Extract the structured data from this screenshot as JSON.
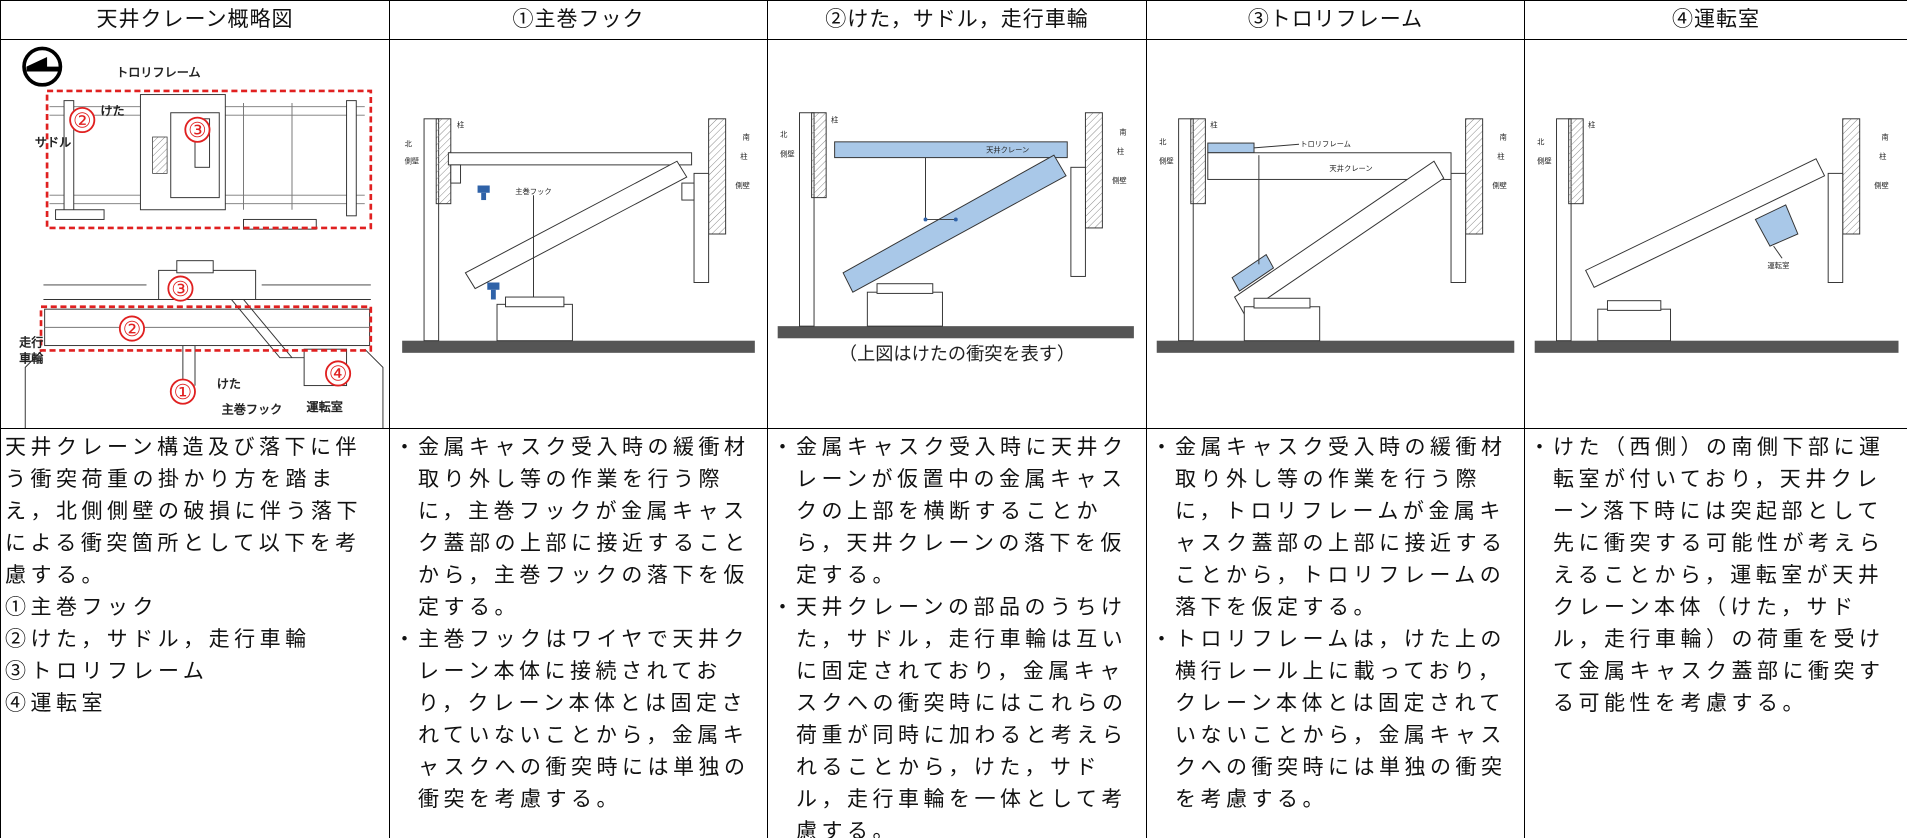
{
  "table": {
    "headers": [
      "天井クレーン概略図",
      "①主巻フック",
      "②けた，サドル，走行車輪",
      "③トロリフレーム",
      "④運転室"
    ],
    "overview_labels": [
      "トロリフレーム",
      "けた",
      "サドル",
      "走行",
      "車輪",
      "けた",
      "主巻フック",
      "運転室"
    ],
    "overview_markers": [
      "②",
      "③",
      "③",
      "②",
      "①",
      "④"
    ],
    "diagrams": [
      {
        "labels": [
          "北",
          "側壁",
          "柱",
          "南",
          "柱",
          "側壁",
          "主巻フック"
        ]
      },
      {
        "labels": [
          "北",
          "側壁",
          "柱",
          "南",
          "柱",
          "側壁",
          "天井クレーン"
        ],
        "caption": "（上図はけたの衝突を表す）"
      },
      {
        "labels": [
          "北",
          "側壁",
          "柱",
          "南",
          "柱",
          "側壁",
          "トロリフレーム",
          "天井クレーン"
        ]
      },
      {
        "labels": [
          "北",
          "側壁",
          "柱",
          "南",
          "柱",
          "側壁",
          "運転室"
        ]
      }
    ],
    "bullet_marker": "・",
    "descriptions": [
      {
        "text": "天井クレーン構造及び落下に伴う衝突荷重の掛かり方を踏まえ，北側側壁の破損に伴う落下による衝突箇所として以下を考慮する。",
        "items": [
          "①主巻フック",
          "②けた，サドル，走行車輪",
          "③トロリフレーム",
          "④運転室"
        ]
      },
      {
        "bullets": [
          "金属キャスク受入時の緩衝材取り外し等の作業を行う際に，主巻フックが金属キャスク蓋部の上部に接近することから，主巻フックの落下を仮定する。",
          "主巻フックはワイヤで天井クレーン本体に接続されており，クレーン本体とは固定されていないことから，金属キャスクへの衝突時には単独の衝突を考慮する。"
        ]
      },
      {
        "bullets": [
          "金属キャスク受入時に天井クレーンが仮置中の金属キャスクの上部を横断することから，天井クレーンの落下を仮定する。",
          "天井クレーンの部品のうちけた，サドル，走行車輪は互いに固定されており，金属キャスクへの衝突時にはこれらの荷重が同時に加わると考えられることから，けた，サドル，走行車輪を一体として考慮する。"
        ]
      },
      {
        "bullets": [
          "金属キャスク受入時の緩衝材取り外し等の作業を行う際に，トロリフレームが金属キャスク蓋部の上部に接近することから，トロリフレームの落下を仮定する。",
          "トロリフレームは，けた上の横行レール上に載っており，クレーン本体とは固定されていないことから，金属キャスクへの衝突時には単独の衝突を考慮する。"
        ]
      },
      {
        "bullets": [
          "けた（西側）の南側下部に運転室が付いており，天井クレーン落下時には突起部として先に衝突する可能性が考えらえることから，運転室が天井クレーン本体（けた，サドル，走行車輪）の荷重を受けて金属キャスク蓋部に衝突する可能性を考慮する。"
        ]
      }
    ]
  }
}
